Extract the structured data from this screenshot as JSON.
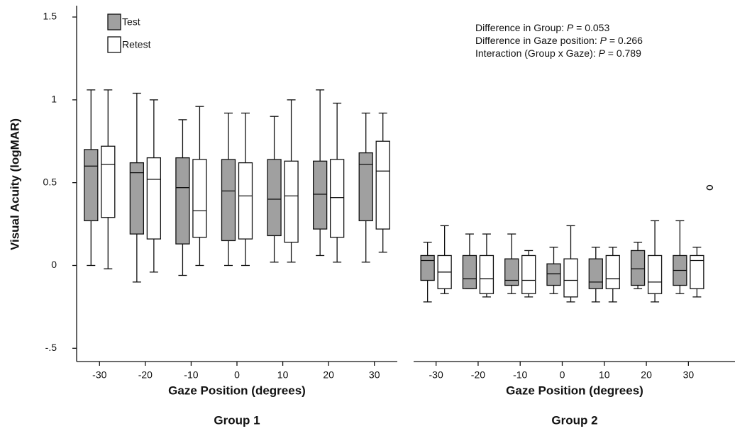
{
  "chart_data": [
    {
      "type": "box",
      "title": "Group 1",
      "x_label": "Gaze Position (degrees)",
      "y_label": "Visual Acuity (logMAR)",
      "categories": [
        "-30",
        "-20",
        "-10",
        "0",
        "10",
        "20",
        "30"
      ],
      "ylim": [
        -0.58,
        1.56
      ],
      "yticks": [
        {
          "value": -0.5,
          "label": "-.5"
        },
        0,
        0.5,
        1,
        1.5
      ],
      "legend": "top-left",
      "series": [
        {
          "name": "Test",
          "color": "#a0a0a0",
          "whisker_low": [
            0,
            -0.1,
            -0.06,
            0,
            0.02,
            0.06,
            0.02
          ],
          "q1": [
            0.27,
            0.19,
            0.13,
            0.15,
            0.18,
            0.22,
            0.27
          ],
          "median": [
            0.6,
            0.56,
            0.47,
            0.45,
            0.4,
            0.43,
            0.61
          ],
          "q3": [
            0.7,
            0.62,
            0.65,
            0.64,
            0.64,
            0.63,
            0.68
          ],
          "whisker_high": [
            1.06,
            1.04,
            0.88,
            0.92,
            0.9,
            1.06,
            0.92
          ]
        },
        {
          "name": "Retest",
          "color": "#ffffff",
          "whisker_low": [
            -0.02,
            -0.04,
            0,
            0,
            0.02,
            0.02,
            0.08
          ],
          "q1": [
            0.29,
            0.16,
            0.17,
            0.16,
            0.14,
            0.17,
            0.22
          ],
          "median": [
            0.61,
            0.52,
            0.33,
            0.42,
            0.42,
            0.41,
            0.57
          ],
          "q3": [
            0.72,
            0.65,
            0.64,
            0.62,
            0.63,
            0.64,
            0.75
          ],
          "whisker_high": [
            1.06,
            1.0,
            0.96,
            0.92,
            1.0,
            0.98,
            0.92
          ]
        }
      ]
    },
    {
      "type": "box",
      "title": "Group 2",
      "x_label": "Gaze Position (degrees)",
      "categories": [
        "-30",
        "-20",
        "-10",
        "0",
        "10",
        "20",
        "30"
      ],
      "ylim": [
        -0.58,
        1.56
      ],
      "annotations": [
        [
          "Difference in Group: ",
          "P",
          " = 0.053"
        ],
        [
          "Difference in Gaze position: ",
          "P",
          " = 0.266"
        ],
        [
          "Interaction (Group x Gaze): ",
          "P",
          " = 0.789"
        ]
      ],
      "series": [
        {
          "color": "#a0a0a0",
          "whisker_low": [
            -0.22,
            -0.14,
            -0.17,
            -0.17,
            -0.22,
            -0.14,
            -0.17
          ],
          "q1": [
            -0.09,
            -0.14,
            -0.12,
            -0.12,
            -0.14,
            -0.12,
            -0.12
          ],
          "median": [
            0.03,
            -0.08,
            -0.09,
            -0.05,
            -0.1,
            -0.02,
            -0.03
          ],
          "q3": [
            0.06,
            0.06,
            0.04,
            0.01,
            0.04,
            0.09,
            0.06
          ],
          "whisker_high": [
            0.14,
            0.19,
            0.19,
            0.11,
            0.11,
            0.14,
            0.27
          ]
        },
        {
          "color": "#ffffff",
          "whisker_low": [
            -0.17,
            -0.19,
            -0.19,
            -0.22,
            -0.22,
            -0.22,
            -0.19
          ],
          "q1": [
            -0.14,
            -0.17,
            -0.17,
            -0.19,
            -0.14,
            -0.17,
            -0.14
          ],
          "median": [
            -0.04,
            -0.08,
            -0.09,
            -0.09,
            -0.08,
            -0.1,
            0.03
          ],
          "q3": [
            0.06,
            0.06,
            0.06,
            0.04,
            0.06,
            0.06,
            0.06
          ],
          "whisker_high": [
            0.24,
            0.19,
            0.09,
            0.24,
            0.11,
            0.27,
            0.11
          ],
          "outliers": [
            [],
            [],
            [],
            [],
            [],
            [],
            [
              0.47
            ]
          ]
        }
      ]
    }
  ]
}
